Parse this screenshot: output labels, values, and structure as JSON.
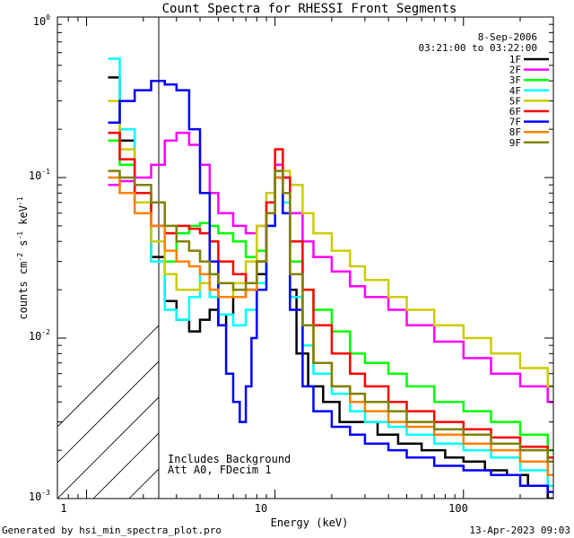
{
  "footer": {
    "generated_by": "Generated by hsi_min_spectra_plot.pro",
    "timestamp": "13-Apr-2023 09:03"
  },
  "chart_data": {
    "type": "line",
    "title": "Count Spectra for RHESSI Front Segments",
    "xlabel": "Energy (keV)",
    "ylabel_base": "counts cm",
    "ylabel_sup1": "-2",
    "ylabel_mid": " s",
    "ylabel_sup2": "-1",
    "ylabel_end": " keV",
    "ylabel_sup3": "-1",
    "x_scale": "log",
    "y_scale": "log",
    "xlim": [
      0.7,
      300
    ],
    "ylim": [
      0.001,
      1
    ],
    "x_ticks": [
      {
        "value": 1,
        "label": "1"
      },
      {
        "value": 10,
        "label": "10"
      },
      {
        "value": 100,
        "label": "100"
      }
    ],
    "y_ticks": [
      {
        "value": 0.001,
        "base": "10",
        "exp": "-3"
      },
      {
        "value": 0.01,
        "base": "10",
        "exp": "-2"
      },
      {
        "value": 0.1,
        "base": "10",
        "exp": "-1"
      },
      {
        "value": 1,
        "base": "10",
        "exp": "0"
      }
    ],
    "date": "8-Sep-2006",
    "time_range": "03:21:00 to 03:22:00",
    "hatched_region_x": [
      0.7,
      3
    ],
    "annotations": [
      "Includes Background",
      "Att A0, FDecim 1"
    ],
    "series": [
      {
        "name": "1F",
        "color": "#000000",
        "points": [
          [
            1.3,
            0.42
          ],
          [
            1.5,
            0.17
          ],
          [
            1.8,
            0.07
          ],
          [
            2.2,
            0.032
          ],
          [
            2.6,
            0.017
          ],
          [
            3.0,
            0.013
          ],
          [
            3.5,
            0.011
          ],
          [
            4.0,
            0.013
          ],
          [
            4.5,
            0.015
          ],
          [
            5.0,
            0.012
          ],
          [
            5.5,
            0.014
          ],
          [
            6.0,
            0.018
          ],
          [
            7.0,
            0.02
          ],
          [
            8.0,
            0.025
          ],
          [
            9.0,
            0.06
          ],
          [
            10,
            0.12
          ],
          [
            11,
            0.08
          ],
          [
            12,
            0.02
          ],
          [
            13,
            0.008
          ],
          [
            15,
            0.005
          ],
          [
            18,
            0.004
          ],
          [
            22,
            0.003
          ],
          [
            28,
            0.003
          ],
          [
            35,
            0.0025
          ],
          [
            45,
            0.0022
          ],
          [
            60,
            0.002
          ],
          [
            80,
            0.0018
          ],
          [
            100,
            0.0017
          ],
          [
            130,
            0.0015
          ],
          [
            170,
            0.0014
          ],
          [
            220,
            0.0012
          ],
          [
            280,
            0.001
          ]
        ]
      },
      {
        "name": "2F",
        "color": "#ff00ff",
        "points": [
          [
            1.3,
            0.09
          ],
          [
            1.5,
            0.095
          ],
          [
            1.8,
            0.1
          ],
          [
            2.2,
            0.12
          ],
          [
            2.6,
            0.17
          ],
          [
            3.0,
            0.19
          ],
          [
            3.5,
            0.16
          ],
          [
            4.0,
            0.12
          ],
          [
            4.5,
            0.08
          ],
          [
            5.0,
            0.06
          ],
          [
            6.0,
            0.05
          ],
          [
            7.0,
            0.045
          ],
          [
            8.0,
            0.05
          ],
          [
            9.0,
            0.07
          ],
          [
            10,
            0.12
          ],
          [
            11,
            0.1
          ],
          [
            12,
            0.06
          ],
          [
            14,
            0.04
          ],
          [
            16,
            0.032
          ],
          [
            20,
            0.026
          ],
          [
            25,
            0.021
          ],
          [
            30,
            0.018
          ],
          [
            40,
            0.015
          ],
          [
            50,
            0.012
          ],
          [
            70,
            0.0095
          ],
          [
            100,
            0.0075
          ],
          [
            140,
            0.006
          ],
          [
            200,
            0.005
          ],
          [
            280,
            0.004
          ]
        ]
      },
      {
        "name": "3F",
        "color": "#00ff00",
        "points": [
          [
            1.3,
            0.17
          ],
          [
            1.5,
            0.12
          ],
          [
            1.8,
            0.07
          ],
          [
            2.2,
            0.04
          ],
          [
            2.6,
            0.03
          ],
          [
            3.0,
            0.045
          ],
          [
            3.5,
            0.05
          ],
          [
            4.0,
            0.052
          ],
          [
            4.5,
            0.05
          ],
          [
            5.0,
            0.045
          ],
          [
            6.0,
            0.04
          ],
          [
            7.0,
            0.032
          ],
          [
            8.0,
            0.035
          ],
          [
            9.0,
            0.06
          ],
          [
            10,
            0.11
          ],
          [
            11,
            0.08
          ],
          [
            12,
            0.03
          ],
          [
            14,
            0.02
          ],
          [
            16,
            0.015
          ],
          [
            20,
            0.011
          ],
          [
            25,
            0.008
          ],
          [
            30,
            0.007
          ],
          [
            40,
            0.006
          ],
          [
            50,
            0.005
          ],
          [
            70,
            0.004
          ],
          [
            100,
            0.0035
          ],
          [
            140,
            0.003
          ],
          [
            200,
            0.0025
          ],
          [
            280,
            0.002
          ]
        ]
      },
      {
        "name": "4F",
        "color": "#00ffff",
        "points": [
          [
            1.3,
            0.55
          ],
          [
            1.5,
            0.2
          ],
          [
            1.8,
            0.06
          ],
          [
            2.2,
            0.03
          ],
          [
            2.6,
            0.015
          ],
          [
            3.0,
            0.013
          ],
          [
            3.5,
            0.018
          ],
          [
            4.0,
            0.025
          ],
          [
            4.5,
            0.018
          ],
          [
            5.0,
            0.014
          ],
          [
            6.0,
            0.012
          ],
          [
            7.0,
            0.015
          ],
          [
            8.0,
            0.022
          ],
          [
            9.0,
            0.05
          ],
          [
            10,
            0.1
          ],
          [
            11,
            0.07
          ],
          [
            12,
            0.018
          ],
          [
            14,
            0.009
          ],
          [
            16,
            0.006
          ],
          [
            20,
            0.0045
          ],
          [
            25,
            0.0035
          ],
          [
            30,
            0.003
          ],
          [
            40,
            0.0028
          ],
          [
            50,
            0.0025
          ],
          [
            70,
            0.0022
          ],
          [
            100,
            0.002
          ],
          [
            140,
            0.0018
          ],
          [
            200,
            0.0015
          ],
          [
            280,
            0.0012
          ]
        ]
      },
      {
        "name": "5F",
        "color": "#cccc00",
        "points": [
          [
            1.3,
            0.3
          ],
          [
            1.5,
            0.15
          ],
          [
            1.8,
            0.07
          ],
          [
            2.2,
            0.04
          ],
          [
            2.6,
            0.025
          ],
          [
            3.0,
            0.02
          ],
          [
            3.5,
            0.02
          ],
          [
            4.0,
            0.022
          ],
          [
            4.5,
            0.02
          ],
          [
            5.0,
            0.018
          ],
          [
            6.0,
            0.022
          ],
          [
            7.0,
            0.03
          ],
          [
            8.0,
            0.05
          ],
          [
            9.0,
            0.08
          ],
          [
            10,
            0.1
          ],
          [
            11,
            0.11
          ],
          [
            12,
            0.09
          ],
          [
            14,
            0.06
          ],
          [
            16,
            0.045
          ],
          [
            20,
            0.035
          ],
          [
            25,
            0.028
          ],
          [
            30,
            0.023
          ],
          [
            40,
            0.018
          ],
          [
            50,
            0.015
          ],
          [
            70,
            0.012
          ],
          [
            100,
            0.01
          ],
          [
            140,
            0.008
          ],
          [
            200,
            0.0065
          ],
          [
            280,
            0.005
          ]
        ]
      },
      {
        "name": "6F",
        "color": "#ff0000",
        "points": [
          [
            1.3,
            0.19
          ],
          [
            1.5,
            0.13
          ],
          [
            1.8,
            0.08
          ],
          [
            2.2,
            0.05
          ],
          [
            2.6,
            0.045
          ],
          [
            3.0,
            0.05
          ],
          [
            3.5,
            0.048
          ],
          [
            4.0,
            0.045
          ],
          [
            4.5,
            0.04
          ],
          [
            5.0,
            0.03
          ],
          [
            6.0,
            0.025
          ],
          [
            7.0,
            0.022
          ],
          [
            8.0,
            0.03
          ],
          [
            9.0,
            0.07
          ],
          [
            10,
            0.15
          ],
          [
            11,
            0.1
          ],
          [
            12,
            0.04
          ],
          [
            14,
            0.02
          ],
          [
            16,
            0.012
          ],
          [
            20,
            0.008
          ],
          [
            25,
            0.006
          ],
          [
            30,
            0.005
          ],
          [
            40,
            0.004
          ],
          [
            50,
            0.0035
          ],
          [
            70,
            0.003
          ],
          [
            100,
            0.0027
          ],
          [
            140,
            0.0024
          ],
          [
            200,
            0.0021
          ],
          [
            280,
            0.0018
          ]
        ]
      },
      {
        "name": "7F",
        "color": "#0000ff",
        "points": [
          [
            1.3,
            0.22
          ],
          [
            1.5,
            0.3
          ],
          [
            1.8,
            0.35
          ],
          [
            2.2,
            0.4
          ],
          [
            2.6,
            0.38
          ],
          [
            3.0,
            0.35
          ],
          [
            3.5,
            0.2
          ],
          [
            4.0,
            0.08
          ],
          [
            4.5,
            0.03
          ],
          [
            5.0,
            0.012
          ],
          [
            5.5,
            0.006
          ],
          [
            6.0,
            0.004
          ],
          [
            6.5,
            0.003
          ],
          [
            7.0,
            0.005
          ],
          [
            7.5,
            0.01
          ],
          [
            8.0,
            0.02
          ],
          [
            9.0,
            0.05
          ],
          [
            10,
            0.1
          ],
          [
            11,
            0.06
          ],
          [
            12,
            0.015
          ],
          [
            14,
            0.005
          ],
          [
            16,
            0.0035
          ],
          [
            20,
            0.0028
          ],
          [
            25,
            0.0025
          ],
          [
            30,
            0.0022
          ],
          [
            40,
            0.002
          ],
          [
            50,
            0.0018
          ],
          [
            70,
            0.0016
          ],
          [
            100,
            0.0015
          ],
          [
            140,
            0.0014
          ],
          [
            200,
            0.0012
          ],
          [
            280,
            0.0011
          ]
        ]
      },
      {
        "name": "8F",
        "color": "#ff8000",
        "points": [
          [
            1.3,
            0.1
          ],
          [
            1.5,
            0.08
          ],
          [
            1.8,
            0.06
          ],
          [
            2.2,
            0.05
          ],
          [
            2.6,
            0.035
          ],
          [
            3.0,
            0.03
          ],
          [
            3.5,
            0.028
          ],
          [
            4.0,
            0.025
          ],
          [
            4.5,
            0.02
          ],
          [
            5.0,
            0.018
          ],
          [
            6.0,
            0.018
          ],
          [
            7.0,
            0.02
          ],
          [
            8.0,
            0.03
          ],
          [
            9.0,
            0.06
          ],
          [
            10,
            0.1
          ],
          [
            11,
            0.08
          ],
          [
            12,
            0.025
          ],
          [
            14,
            0.012
          ],
          [
            16,
            0.007
          ],
          [
            20,
            0.005
          ],
          [
            25,
            0.004
          ],
          [
            30,
            0.0035
          ],
          [
            40,
            0.003
          ],
          [
            50,
            0.0028
          ],
          [
            70,
            0.0025
          ],
          [
            100,
            0.0022
          ],
          [
            140,
            0.002
          ],
          [
            200,
            0.0017
          ],
          [
            280,
            0.0014
          ]
        ]
      },
      {
        "name": "9F",
        "color": "#808000",
        "points": [
          [
            1.3,
            0.11
          ],
          [
            1.5,
            0.1
          ],
          [
            1.8,
            0.09
          ],
          [
            2.2,
            0.07
          ],
          [
            2.6,
            0.05
          ],
          [
            3.0,
            0.04
          ],
          [
            3.5,
            0.035
          ],
          [
            4.0,
            0.03
          ],
          [
            4.5,
            0.025
          ],
          [
            5.0,
            0.022
          ],
          [
            6.0,
            0.02
          ],
          [
            7.0,
            0.022
          ],
          [
            8.0,
            0.03
          ],
          [
            9.0,
            0.06
          ],
          [
            10,
            0.11
          ],
          [
            11,
            0.08
          ],
          [
            12,
            0.025
          ],
          [
            14,
            0.012
          ],
          [
            16,
            0.007
          ],
          [
            20,
            0.005
          ],
          [
            25,
            0.0045
          ],
          [
            30,
            0.004
          ],
          [
            40,
            0.0035
          ],
          [
            50,
            0.003
          ],
          [
            70,
            0.0027
          ],
          [
            100,
            0.0025
          ],
          [
            140,
            0.0022
          ],
          [
            200,
            0.002
          ],
          [
            280,
            0.0017
          ]
        ]
      }
    ]
  }
}
